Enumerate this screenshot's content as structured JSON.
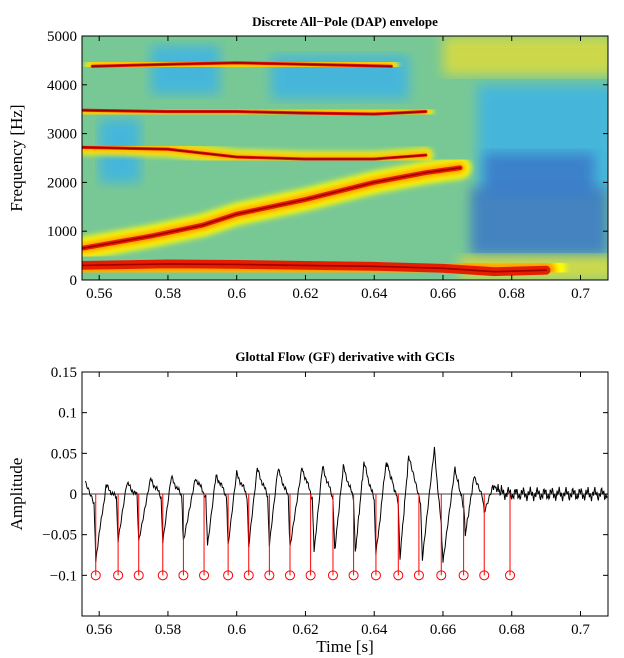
{
  "chart_data": [
    {
      "type": "heatmap",
      "title": "Discrete All−Pole (DAP) envelope",
      "xlabel": "",
      "ylabel": "Frequency [Hz]",
      "xlim": [
        0.555,
        0.708
      ],
      "ylim": [
        0,
        5000
      ],
      "xticks": [
        0.56,
        0.58,
        0.6,
        0.62,
        0.64,
        0.66,
        0.68,
        0.7
      ],
      "xtick_labels": [
        "0.56",
        "0.58",
        "0.6",
        "0.62",
        "0.64",
        "0.66",
        "0.68",
        "0.7"
      ],
      "yticks": [
        0,
        1000,
        2000,
        3000,
        4000,
        5000
      ],
      "ytick_labels": [
        "0",
        "1000",
        "2000",
        "3000",
        "4000",
        "5000"
      ],
      "formant_tracks": [
        {
          "x": [
            0.555,
            0.58,
            0.6,
            0.62,
            0.64,
            0.66,
            0.675,
            0.69
          ],
          "y": [
            300,
            330,
            320,
            300,
            280,
            240,
            170,
            200
          ]
        },
        {
          "x": [
            0.555,
            0.575,
            0.59,
            0.6,
            0.62,
            0.64,
            0.655,
            0.665
          ],
          "y": [
            650,
            900,
            1120,
            1350,
            1650,
            2000,
            2200,
            2300
          ]
        },
        {
          "x": [
            0.555,
            0.58,
            0.6,
            0.62,
            0.64,
            0.655
          ],
          "y": [
            2720,
            2680,
            2520,
            2480,
            2480,
            2560
          ]
        },
        {
          "x": [
            0.555,
            0.58,
            0.6,
            0.62,
            0.64,
            0.655
          ],
          "y": [
            3480,
            3450,
            3450,
            3420,
            3400,
            3450
          ]
        },
        {
          "x": [
            0.558,
            0.58,
            0.6,
            0.62,
            0.645
          ],
          "y": [
            4380,
            4420,
            4450,
            4420,
            4380
          ]
        }
      ],
      "colormap": [
        "#3cb4e6",
        "#6ec8a0",
        "#dcdc3c",
        "#ffff00",
        "#ffa000",
        "#e61e00",
        "#a00000"
      ]
    },
    {
      "type": "line",
      "title": "Glottal Flow (GF) derivative with GCIs",
      "xlabel": "Time [s]",
      "ylabel": "Amplitude",
      "xlim": [
        0.555,
        0.708
      ],
      "ylim": [
        -0.15,
        0.15
      ],
      "xticks": [
        0.56,
        0.58,
        0.6,
        0.62,
        0.64,
        0.66,
        0.68,
        0.7
      ],
      "xtick_labels": [
        "0.56",
        "0.58",
        "0.6",
        "0.62",
        "0.64",
        "0.66",
        "0.68",
        "0.7"
      ],
      "yticks": [
        -0.1,
        -0.05,
        0,
        0.05,
        0.1,
        0.15
      ],
      "ytick_labels": [
        "−0.1",
        "−0.05",
        "0",
        "0.05",
        "0.1",
        "0.15"
      ],
      "series": [
        {
          "values_description_free": true,
          "x": [
            0.556,
            0.5585,
            0.559,
            0.562,
            0.565,
            0.5655,
            0.568,
            0.571,
            0.5715,
            0.575,
            0.578,
            0.5785,
            0.581,
            0.584,
            0.5845,
            0.588,
            0.591,
            0.5915,
            0.594,
            0.597,
            0.5975,
            0.6,
            0.603,
            0.6035,
            0.606,
            0.609,
            0.6095,
            0.612,
            0.615,
            0.6155,
            0.619,
            0.622,
            0.6225,
            0.625,
            0.628,
            0.6285,
            0.631,
            0.634,
            0.6345,
            0.637,
            0.64,
            0.6405,
            0.6435,
            0.647,
            0.6475,
            0.65,
            0.6535,
            0.654,
            0.6575,
            0.6595,
            0.66,
            0.6635,
            0.666,
            0.6665,
            0.669,
            0.6715,
            0.672,
            0.6745,
            0.677,
            0.68,
            0.69,
            0.708
          ],
          "y": [
            0.012,
            -0.01,
            -0.08,
            0.01,
            -0.005,
            -0.06,
            0.013,
            -0.002,
            -0.06,
            0.018,
            -0.003,
            -0.06,
            0.02,
            -0.003,
            -0.06,
            0.02,
            -0.003,
            -0.062,
            0.023,
            -0.002,
            -0.062,
            0.025,
            -0.002,
            -0.064,
            0.03,
            -0.003,
            -0.065,
            0.03,
            -0.004,
            -0.068,
            0.032,
            -0.005,
            -0.07,
            0.033,
            -0.006,
            -0.07,
            0.033,
            -0.006,
            -0.072,
            0.038,
            -0.008,
            -0.075,
            0.04,
            -0.01,
            -0.078,
            0.045,
            -0.012,
            -0.082,
            0.055,
            -0.04,
            -0.085,
            0.03,
            -0.015,
            -0.05,
            0.02,
            -0.005,
            -0.02,
            0.01,
            0.002,
            0.0,
            0.0,
            0.0
          ]
        },
        {
          "name": "",
          "x": [
            0.559,
            0.5655,
            0.5715,
            0.5785,
            0.5845,
            0.5905,
            0.5975,
            0.6035,
            0.6095,
            0.6155,
            0.6215,
            0.628,
            0.634,
            0.6405,
            0.647,
            0.653,
            0.6595,
            0.666,
            0.672,
            0.6795
          ],
          "y": [
            -0.1,
            -0.1,
            -0.1,
            -0.1,
            -0.1,
            -0.1,
            -0.1,
            -0.1,
            -0.1,
            -0.1,
            -0.1,
            -0.1,
            -0.1,
            -0.1,
            -0.1,
            -0.1,
            -0.1,
            -0.1,
            -0.1,
            -0.1
          ],
          "color": "#ff0000"
        }
      ]
    }
  ]
}
